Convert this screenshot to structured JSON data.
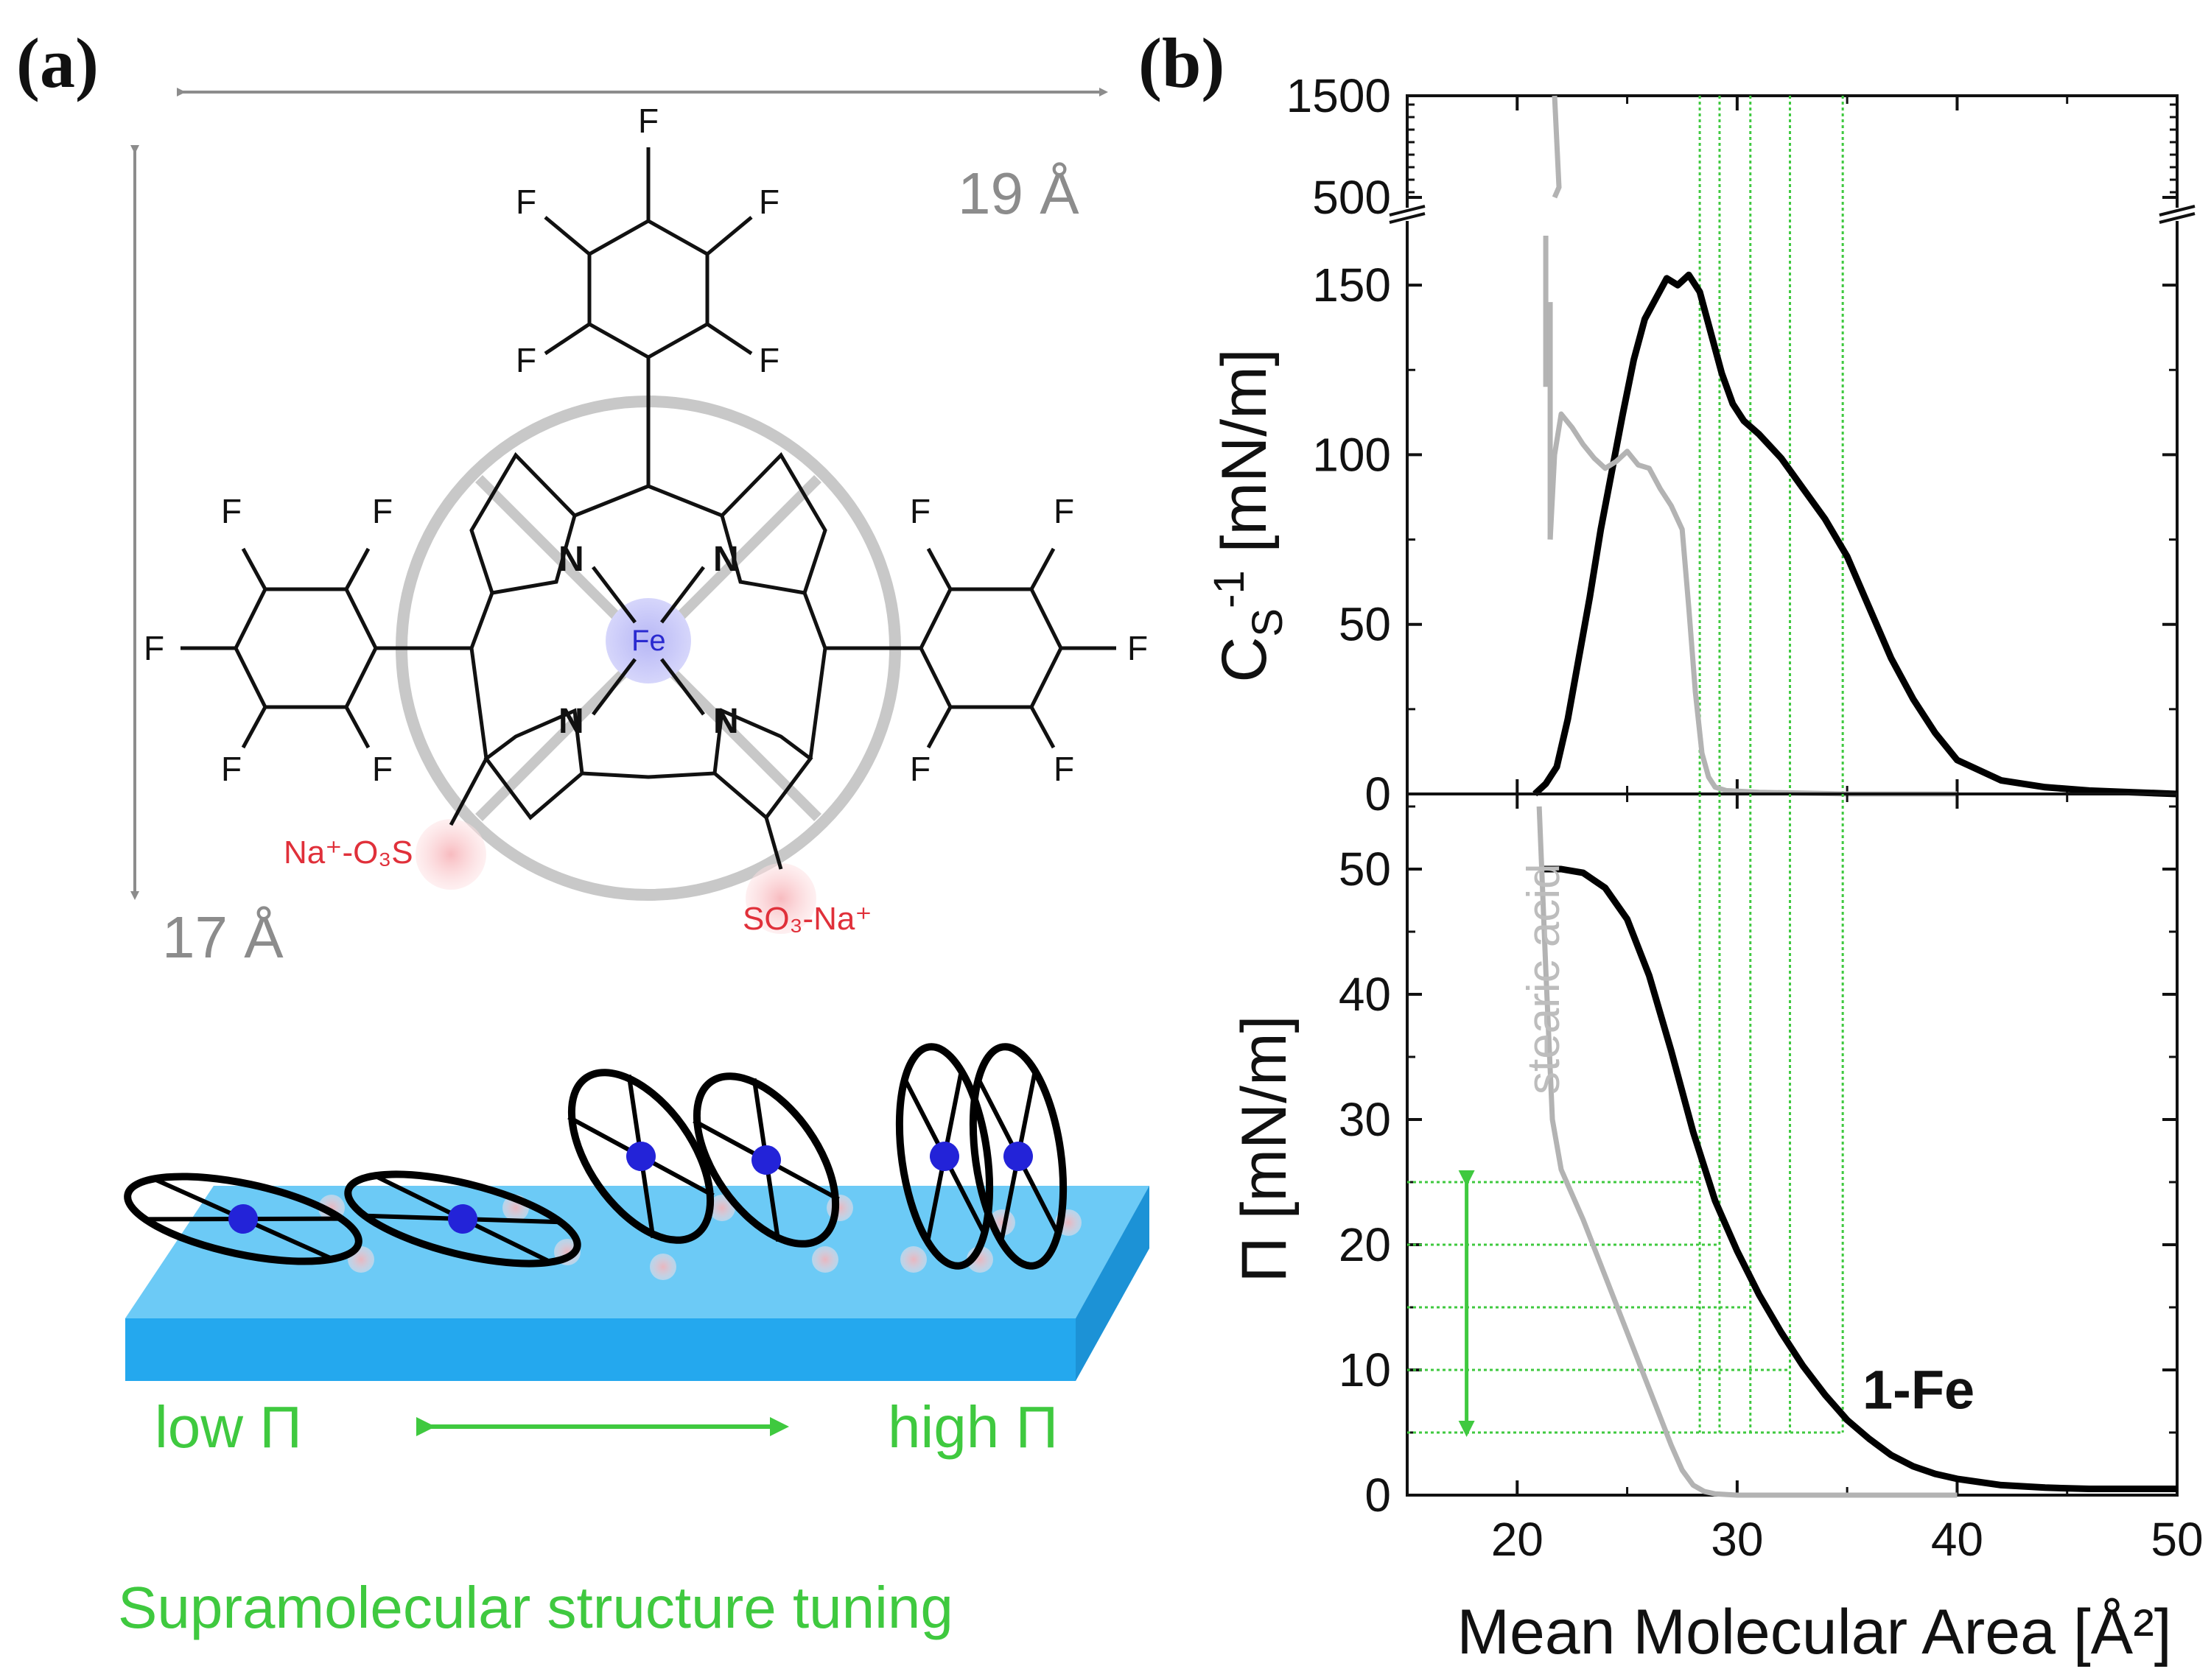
{
  "panel_a": {
    "label": "(a)",
    "width_label": "19 Å",
    "height_label": "17 Å",
    "fluorine": "F",
    "nitrogen": "N",
    "iron": "Fe",
    "sulfonate_left": "Na⁺-O₃S",
    "sulfonate_right": "SO₃-Na⁺",
    "low_label": "low Π",
    "high_label": "high Π",
    "caption": "Supramolecular structure tuning",
    "colors": {
      "arrow_gray": "#8c8c8c",
      "fe_blue": "#2a2ad0",
      "ionic_red": "#e0303a",
      "slab_blue": "#29b6f6",
      "green": "#3fc93f"
    }
  },
  "panel_b": {
    "label": "(b)"
  },
  "chart_data": [
    {
      "type": "line",
      "title": "",
      "xlabel": "Mean Molecular Area [Å²]",
      "ylabel": "C_S^-1 [mN/m]",
      "ylabel_main": "C",
      "ylabel_sub": "S",
      "ylabel_sup": "-1",
      "ylabel_unit": " [mN/m]",
      "xlim": [
        15,
        50
      ],
      "ylim": [
        0,
        170
      ],
      "y_break": {
        "upper_ticks": [
          500,
          1500
        ],
        "upper_tick_labels": [
          "500",
          "1500"
        ]
      },
      "xticks": [
        20,
        30,
        40,
        50
      ],
      "yticks": [
        0,
        50,
        100,
        150
      ],
      "yticks_labels": [
        "0",
        "50",
        "100",
        "150"
      ],
      "series": [
        {
          "name": "1-Fe",
          "color": "#000000",
          "x": [
            20.8,
            21.3,
            21.8,
            22.3,
            22.8,
            23.3,
            23.8,
            24.3,
            24.8,
            25.3,
            25.8,
            26.3,
            26.8,
            27.3,
            27.8,
            28.3,
            28.8,
            29.3,
            29.8,
            30.3,
            31.0,
            32.0,
            33.0,
            34.0,
            35.0,
            36.0,
            37.0,
            38.0,
            39.0,
            40.0,
            42.0,
            44.0,
            46.0,
            48.0,
            50.0
          ],
          "values": [
            0,
            3,
            8,
            22,
            40,
            58,
            78,
            95,
            112,
            128,
            140,
            146,
            152,
            150,
            153,
            148,
            136,
            124,
            115,
            110,
            106,
            99,
            90,
            81,
            70,
            55,
            40,
            28,
            18,
            10,
            4,
            2,
            1,
            0.5,
            0
          ]
        },
        {
          "name": "stearic acid",
          "color": "#b3b3b3",
          "x": [
            21.5,
            21.7,
            22.0,
            22.5,
            23.0,
            23.5,
            24.0,
            24.5,
            25.0,
            25.5,
            26.0,
            26.5,
            27.0,
            27.5,
            27.8,
            28.1,
            28.4,
            28.7,
            29.0,
            29.5,
            31.0,
            35.0,
            40.0
          ],
          "values": [
            75,
            100,
            112,
            108,
            103,
            99,
            96,
            98,
            101,
            97,
            96,
            90,
            85,
            78,
            55,
            30,
            12,
            5,
            2,
            1,
            0.5,
            0,
            0
          ]
        }
      ],
      "legend": "none"
    },
    {
      "type": "line",
      "title": "",
      "xlabel": "Mean Molecular Area [Å²]",
      "ylabel": "Π [mN/m]",
      "xlim": [
        15,
        50
      ],
      "ylim": [
        0,
        56
      ],
      "xticks": [
        20,
        30,
        40,
        50
      ],
      "xtick_labels": [
        "20",
        "30",
        "40",
        "50"
      ],
      "yticks": [
        0,
        10,
        20,
        30,
        40,
        50
      ],
      "ytick_labels": [
        "0",
        "10",
        "20",
        "30",
        "40",
        "50"
      ],
      "series": [
        {
          "name": "1-Fe",
          "label": "1-Fe",
          "color": "#000000",
          "x": [
            21.0,
            22.0,
            23.0,
            24.0,
            25.0,
            26.0,
            27.0,
            28.0,
            29.0,
            30.0,
            31.0,
            32.0,
            33.0,
            34.0,
            35.0,
            36.0,
            37.0,
            38.0,
            39.0,
            40.0,
            42.0,
            44.0,
            46.0,
            48.0,
            50.0
          ],
          "values": [
            50,
            50,
            49.7,
            48.5,
            46,
            41.5,
            35.5,
            29,
            23.5,
            19.5,
            16,
            13,
            10.3,
            8,
            6,
            4.5,
            3.2,
            2.3,
            1.7,
            1.3,
            0.8,
            0.6,
            0.5,
            0.5,
            0.5
          ]
        },
        {
          "name": "stearic acid",
          "label": "stearic acid",
          "color": "#b3b3b3",
          "x": [
            21.0,
            21.3,
            21.6,
            22.0,
            23.0,
            24.0,
            25.0,
            26.0,
            27.0,
            27.5,
            28.0,
            28.5,
            29.0,
            30.0,
            35.0,
            40.0
          ],
          "values": [
            55,
            42,
            30,
            26,
            22,
            17.5,
            13,
            8.5,
            4,
            2,
            0.8,
            0.3,
            0.1,
            0,
            0,
            0
          ]
        }
      ],
      "guide_lines": {
        "pressures": [
          5,
          10,
          15,
          20,
          25
        ],
        "areas": [
          28.3,
          29.2,
          30.6,
          32.4,
          34.8
        ],
        "color": "#3fc93f"
      },
      "legend": "none"
    }
  ]
}
